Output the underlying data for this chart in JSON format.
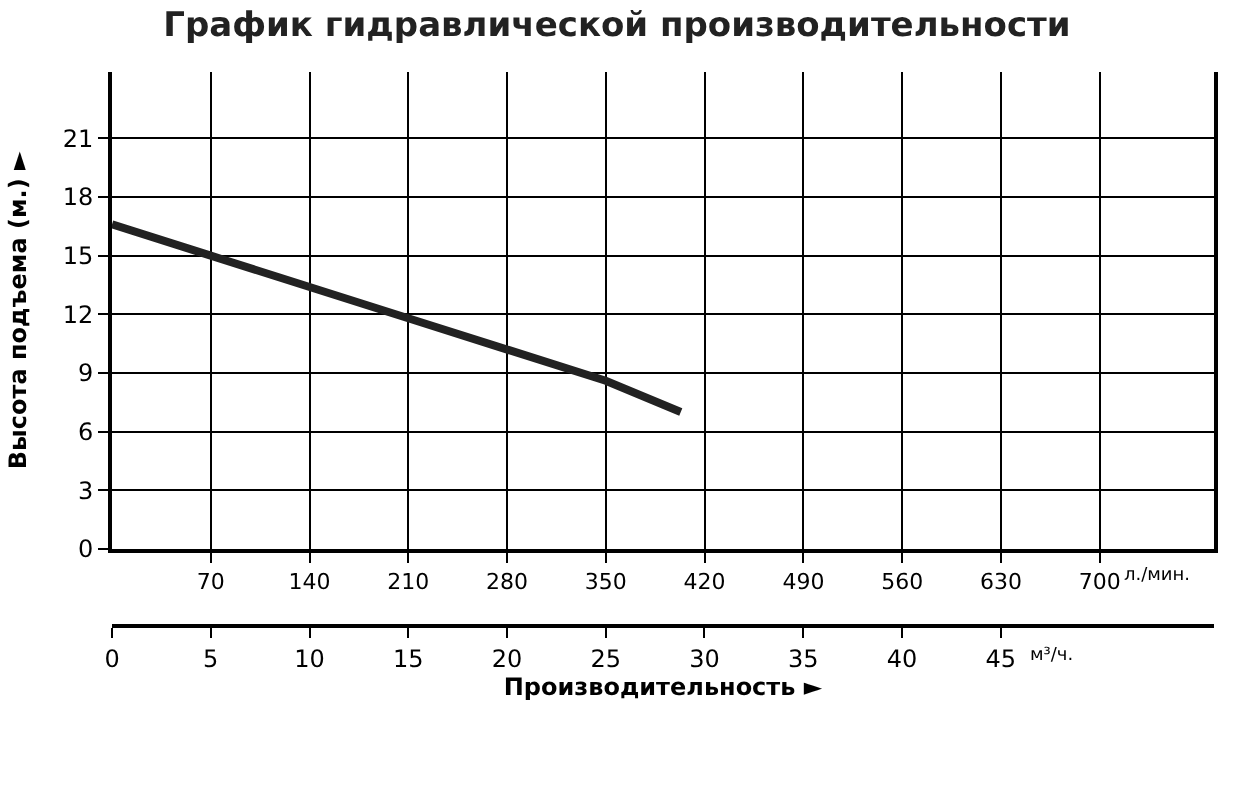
{
  "chart_data": {
    "type": "line",
    "title": "График гидравлической производительности",
    "ylabel": "Высота подъема (м.) ►",
    "x2label": "Производительность ►",
    "x": [
      0,
      5,
      15,
      25,
      28.8
    ],
    "series": [
      {
        "color": "#222222",
        "values": [
          16.6,
          15,
          11.8,
          8.6,
          7
        ]
      }
    ],
    "xlim": [
      0,
      55.8
    ],
    "xticks": [
      0,
      5,
      10,
      15,
      20,
      25,
      30,
      35,
      40,
      45
    ],
    "x2lim": [
      0,
      781
    ],
    "x2ticks": [
      70,
      140,
      210,
      280,
      350,
      420,
      490,
      560,
      630,
      700
    ],
    "ylim": [
      0,
      24.4
    ],
    "yticks": [
      0,
      3,
      6,
      9,
      12,
      15,
      18,
      21
    ],
    "annotations": [
      "л./мин.",
      "м³/ч."
    ],
    "grid": true,
    "marker": "none",
    "line_style": "solid"
  }
}
